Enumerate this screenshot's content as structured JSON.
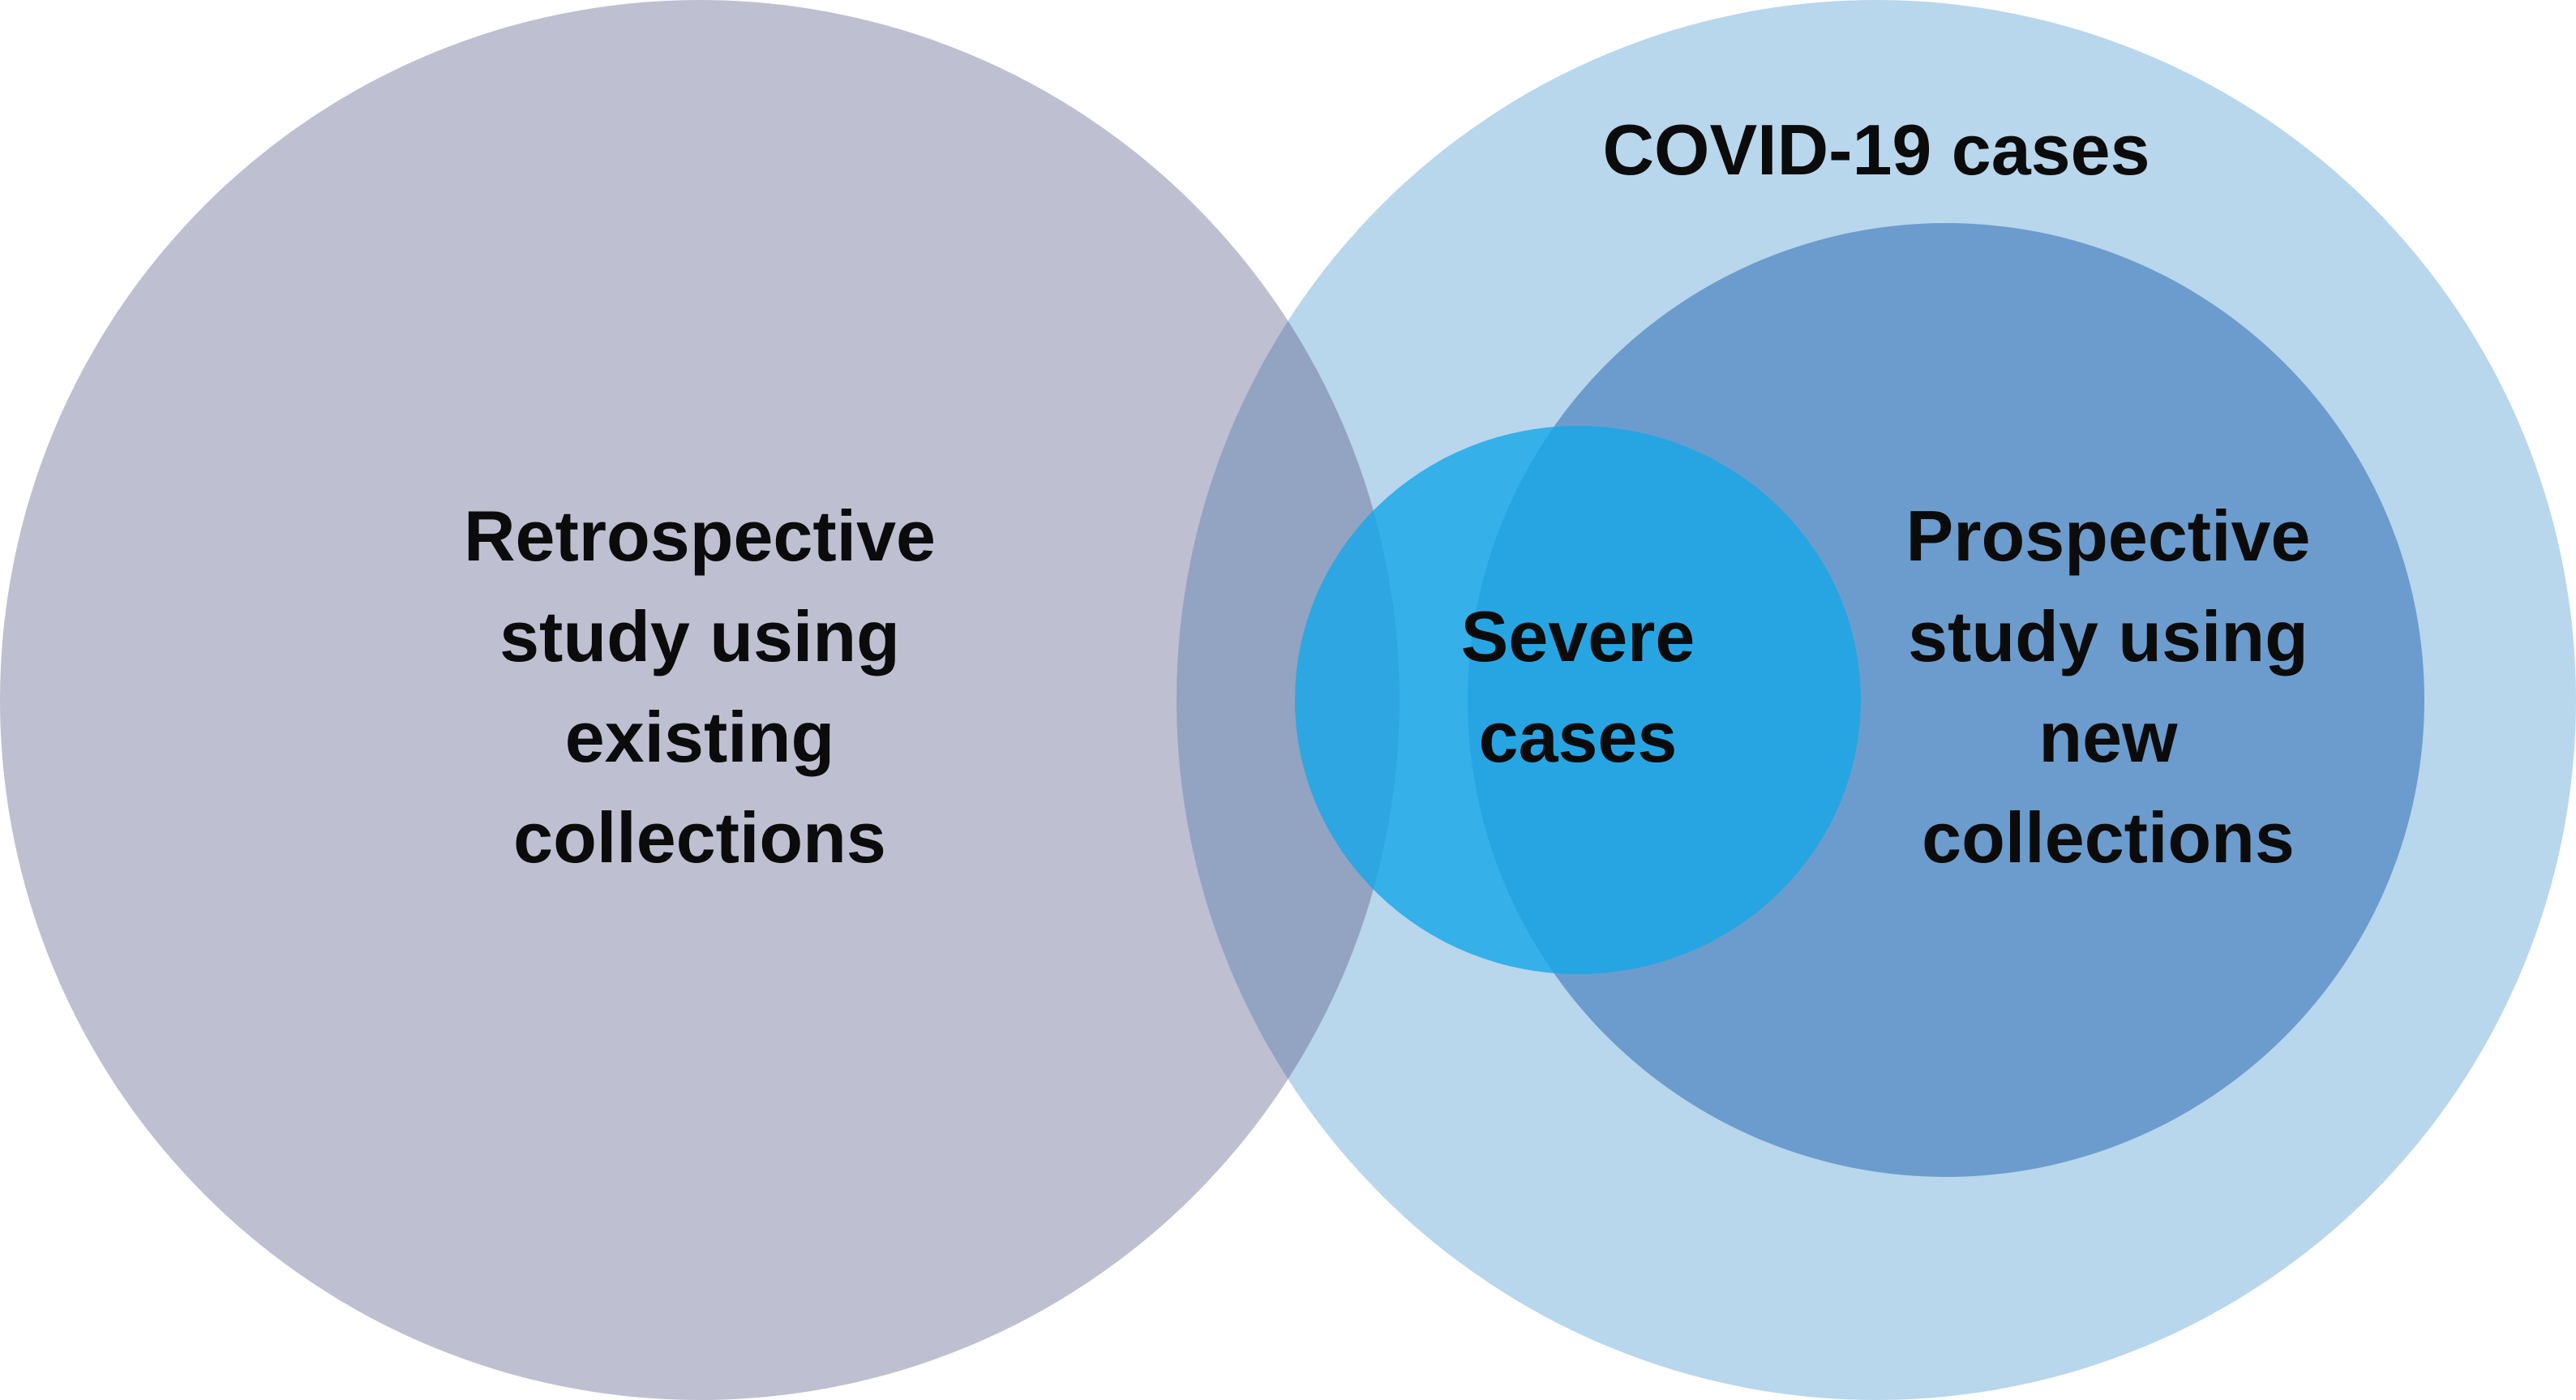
{
  "title": "COVID-19 cases",
  "regions": {
    "retrospective": {
      "lines": [
        "Retrospective",
        "study using",
        "existing",
        "collections"
      ]
    },
    "covid": {
      "label": "COVID-19 cases"
    },
    "prospective": {
      "lines": [
        "Prospective",
        "study using",
        "new",
        "collections"
      ]
    },
    "severe": {
      "lines": [
        "Severe",
        "cases"
      ]
    }
  },
  "colors": {
    "retrospective": "#bfbfd2",
    "covid": "#b8d6ec",
    "prospective": "#6c9ccd",
    "severe": "#1aa6e6",
    "overlap_retro_covid": "#93a3c2",
    "text": "#0b0b0b"
  }
}
